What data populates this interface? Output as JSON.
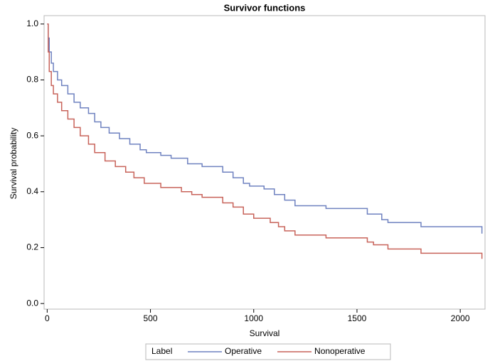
{
  "chart_data": {
    "type": "step",
    "title": "Survivor functions",
    "xlabel": "Survival",
    "ylabel": "Survival probability",
    "xlim": [
      -15,
      2120
    ],
    "ylim": [
      -0.02,
      1.03
    ],
    "xticks": [
      0,
      500,
      1000,
      1500,
      2000
    ],
    "yticks": [
      {
        "value": 0,
        "label": "0.0"
      },
      0.2,
      0.4,
      0.6,
      0.8,
      {
        "value": 1,
        "label": "1.0"
      }
    ],
    "grid": false,
    "legend_position": "bottom",
    "legend_title": "Label",
    "series": [
      {
        "name": "Operative",
        "color": "#6f82c0",
        "x": [
          0,
          5,
          10,
          20,
          30,
          50,
          70,
          100,
          130,
          160,
          200,
          230,
          260,
          300,
          350,
          400,
          450,
          480,
          550,
          600,
          680,
          750,
          850,
          900,
          950,
          980,
          1050,
          1100,
          1150,
          1200,
          1350,
          1550,
          1620,
          1650,
          1810,
          2105
        ],
        "values": [
          1.0,
          0.95,
          0.9,
          0.86,
          0.83,
          0.8,
          0.78,
          0.75,
          0.72,
          0.7,
          0.68,
          0.65,
          0.63,
          0.61,
          0.59,
          0.57,
          0.55,
          0.54,
          0.53,
          0.52,
          0.5,
          0.49,
          0.47,
          0.45,
          0.43,
          0.42,
          0.41,
          0.39,
          0.37,
          0.35,
          0.34,
          0.32,
          0.3,
          0.29,
          0.275,
          0.25
        ]
      },
      {
        "name": "Nonoperative",
        "color": "#c8635a",
        "x": [
          0,
          5,
          10,
          20,
          30,
          50,
          70,
          100,
          130,
          160,
          200,
          230,
          280,
          330,
          380,
          420,
          470,
          550,
          650,
          700,
          750,
          850,
          900,
          950,
          1000,
          1080,
          1120,
          1150,
          1200,
          1350,
          1550,
          1580,
          1650,
          1810,
          2105
        ],
        "values": [
          1.0,
          0.9,
          0.83,
          0.78,
          0.75,
          0.72,
          0.69,
          0.66,
          0.63,
          0.6,
          0.57,
          0.54,
          0.51,
          0.49,
          0.47,
          0.45,
          0.43,
          0.415,
          0.4,
          0.39,
          0.38,
          0.36,
          0.345,
          0.32,
          0.305,
          0.29,
          0.275,
          0.26,
          0.245,
          0.235,
          0.22,
          0.21,
          0.195,
          0.18,
          0.16
        ]
      }
    ]
  }
}
